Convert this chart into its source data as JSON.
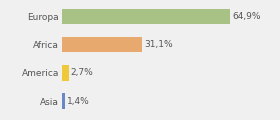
{
  "categories": [
    "Asia",
    "America",
    "Africa",
    "Europa"
  ],
  "values": [
    1.4,
    2.7,
    31.1,
    64.9
  ],
  "labels": [
    "1,4%",
    "2,7%",
    "31,1%",
    "64,9%"
  ],
  "bar_colors": [
    "#6a87c8",
    "#f0c93a",
    "#e8a96e",
    "#a8c285"
  ],
  "background_color": "#f0f0f0",
  "xlim": [
    0,
    82
  ],
  "bar_height": 0.55,
  "label_fontsize": 6.5,
  "tick_fontsize": 6.5
}
